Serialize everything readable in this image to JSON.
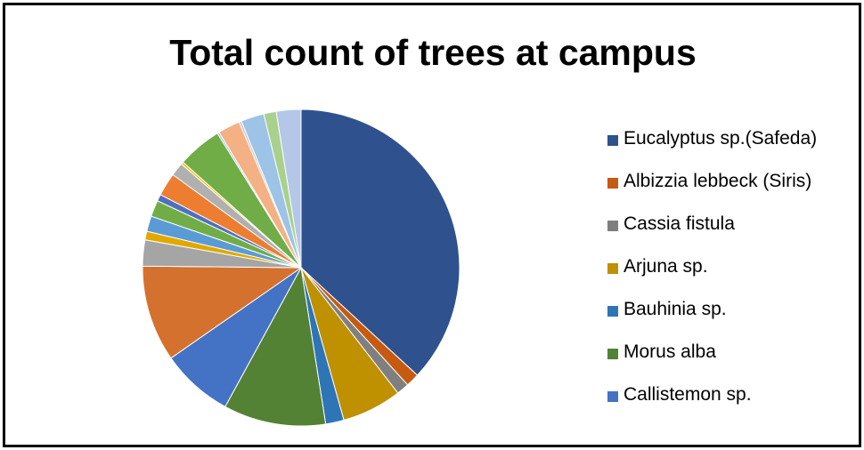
{
  "chart_data": {
    "type": "pie",
    "title": "Total count of trees at campus",
    "legend_position": "right",
    "slices": [
      {
        "label": "Eucalyptus sp.(Safeda)",
        "value": 37.5,
        "color": "#2f528f"
      },
      {
        "label": "Albizzia lebbeck (Siris)",
        "value": 1.4,
        "color": "#c55a11"
      },
      {
        "label": "Cassia fistula",
        "value": 1.3,
        "color": "#7f7f7f"
      },
      {
        "label": "Arjuna sp.",
        "value": 6.2,
        "color": "#bf9000"
      },
      {
        "label": "Bauhinia sp.",
        "value": 1.9,
        "color": "#2e75b6"
      },
      {
        "label": "Morus alba",
        "value": 10.6,
        "color": "#548235"
      },
      {
        "label": "Callistemon sp.",
        "value": 7.5,
        "color": "#4472c4"
      },
      {
        "label": "",
        "value": 10.0,
        "color": "#d4712e"
      },
      {
        "label": "",
        "value": 2.7,
        "color": "#a5a5a5"
      },
      {
        "label": "",
        "value": 0.9,
        "color": "#e0a800"
      },
      {
        "label": "",
        "value": 1.6,
        "color": "#5b9bd5"
      },
      {
        "label": "",
        "value": 1.7,
        "color": "#70ad47"
      },
      {
        "label": "",
        "value": 0.7,
        "color": "#4f6fc0"
      },
      {
        "label": "",
        "value": 2.4,
        "color": "#ed7d31"
      },
      {
        "label": "",
        "value": 1.4,
        "color": "#b0b0b0"
      },
      {
        "label": "",
        "value": 0.25,
        "color": "#ffc000"
      },
      {
        "label": "",
        "value": 4.6,
        "color": "#70ad47"
      },
      {
        "label": "",
        "value": 0.2,
        "color": "#9dc3e6"
      },
      {
        "label": "",
        "value": 2.3,
        "color": "#f4b183"
      },
      {
        "label": "",
        "value": 0.25,
        "color": "#c9c9c9"
      },
      {
        "label": "",
        "value": 2.4,
        "color": "#9dc3e6"
      },
      {
        "label": "",
        "value": 1.3,
        "color": "#a9d18e"
      },
      {
        "label": "",
        "value": 2.55,
        "color": "#b4c7e7"
      }
    ],
    "legend": [
      {
        "label": "Eucalyptus sp.(Safeda)",
        "color": "#2f528f"
      },
      {
        "label": "Albizzia lebbeck (Siris)",
        "color": "#c55a11"
      },
      {
        "label": "Cassia fistula",
        "color": "#7f7f7f"
      },
      {
        "label": "Arjuna sp.",
        "color": "#bf9000"
      },
      {
        "label": "Bauhinia sp.",
        "color": "#2e75b6"
      },
      {
        "label": "Morus alba",
        "color": "#548235"
      },
      {
        "label": "Callistemon sp.",
        "color": "#4472c4"
      }
    ]
  }
}
